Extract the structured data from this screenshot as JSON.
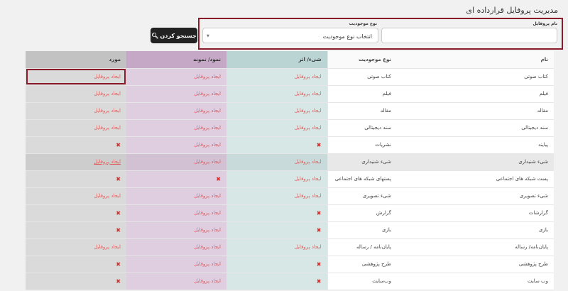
{
  "page_title": "مدیریت پروفایل قرارداده ای",
  "filters": {
    "profile_name_label": "نام پروفایل",
    "profile_name_value": "",
    "entity_type_label": "نوع موجودیت",
    "entity_type_selected": "انتخاب نوع موجودیت",
    "search_button": "جستجو کردن"
  },
  "table": {
    "headers": [
      "نام",
      "نوع موجودیت",
      "شیء/ اثر",
      "نمود/ نمونه",
      "مورد"
    ],
    "create_label": "ایجاد پروفایل",
    "rows": [
      {
        "name": "کتاب صوتی",
        "type": "کتاب صوتی",
        "obj": true,
        "exp": true,
        "item": true
      },
      {
        "name": "فیلم",
        "type": "فیلم",
        "obj": true,
        "exp": true,
        "item": true
      },
      {
        "name": "مقاله",
        "type": "مقاله",
        "obj": true,
        "exp": true,
        "item": true
      },
      {
        "name": "سند دیجیتالی",
        "type": "سند دیجیتالی",
        "obj": true,
        "exp": true,
        "item": true
      },
      {
        "name": "پیایند",
        "type": "نشریات",
        "obj": false,
        "exp": true,
        "item": false
      },
      {
        "name": "شیء شنیداری",
        "type": "شیء شنیداری",
        "obj": true,
        "exp": true,
        "item": true
      },
      {
        "name": "پست شبکه های اجتماعی",
        "type": "پستهای شبکه های اجتماعی",
        "obj": true,
        "exp": false,
        "item": false
      },
      {
        "name": "شیء تصویری",
        "type": "شیء تصویری",
        "obj": true,
        "exp": true,
        "item": true
      },
      {
        "name": "گزارشات",
        "type": "گزارش",
        "obj": false,
        "exp": true,
        "item": false
      },
      {
        "name": "بازی",
        "type": "بازی",
        "obj": false,
        "exp": true,
        "item": false
      },
      {
        "name": "پایان‌نامه/ رساله",
        "type": "پایان‌نامه / رساله",
        "obj": true,
        "exp": true,
        "item": true
      },
      {
        "name": "طرح پژوهشی",
        "type": "طرح پژوهشی",
        "obj": false,
        "exp": true,
        "item": false
      },
      {
        "name": "وب سایت",
        "type": "وب‌سایت",
        "obj": false,
        "exp": true,
        "item": false
      }
    ]
  },
  "colors": {
    "accent": "#8b1a2b",
    "link": "#e05a5a",
    "object_col": "#d7e7e6",
    "expression_col": "#dfcde0",
    "item_col": "#dadada"
  }
}
